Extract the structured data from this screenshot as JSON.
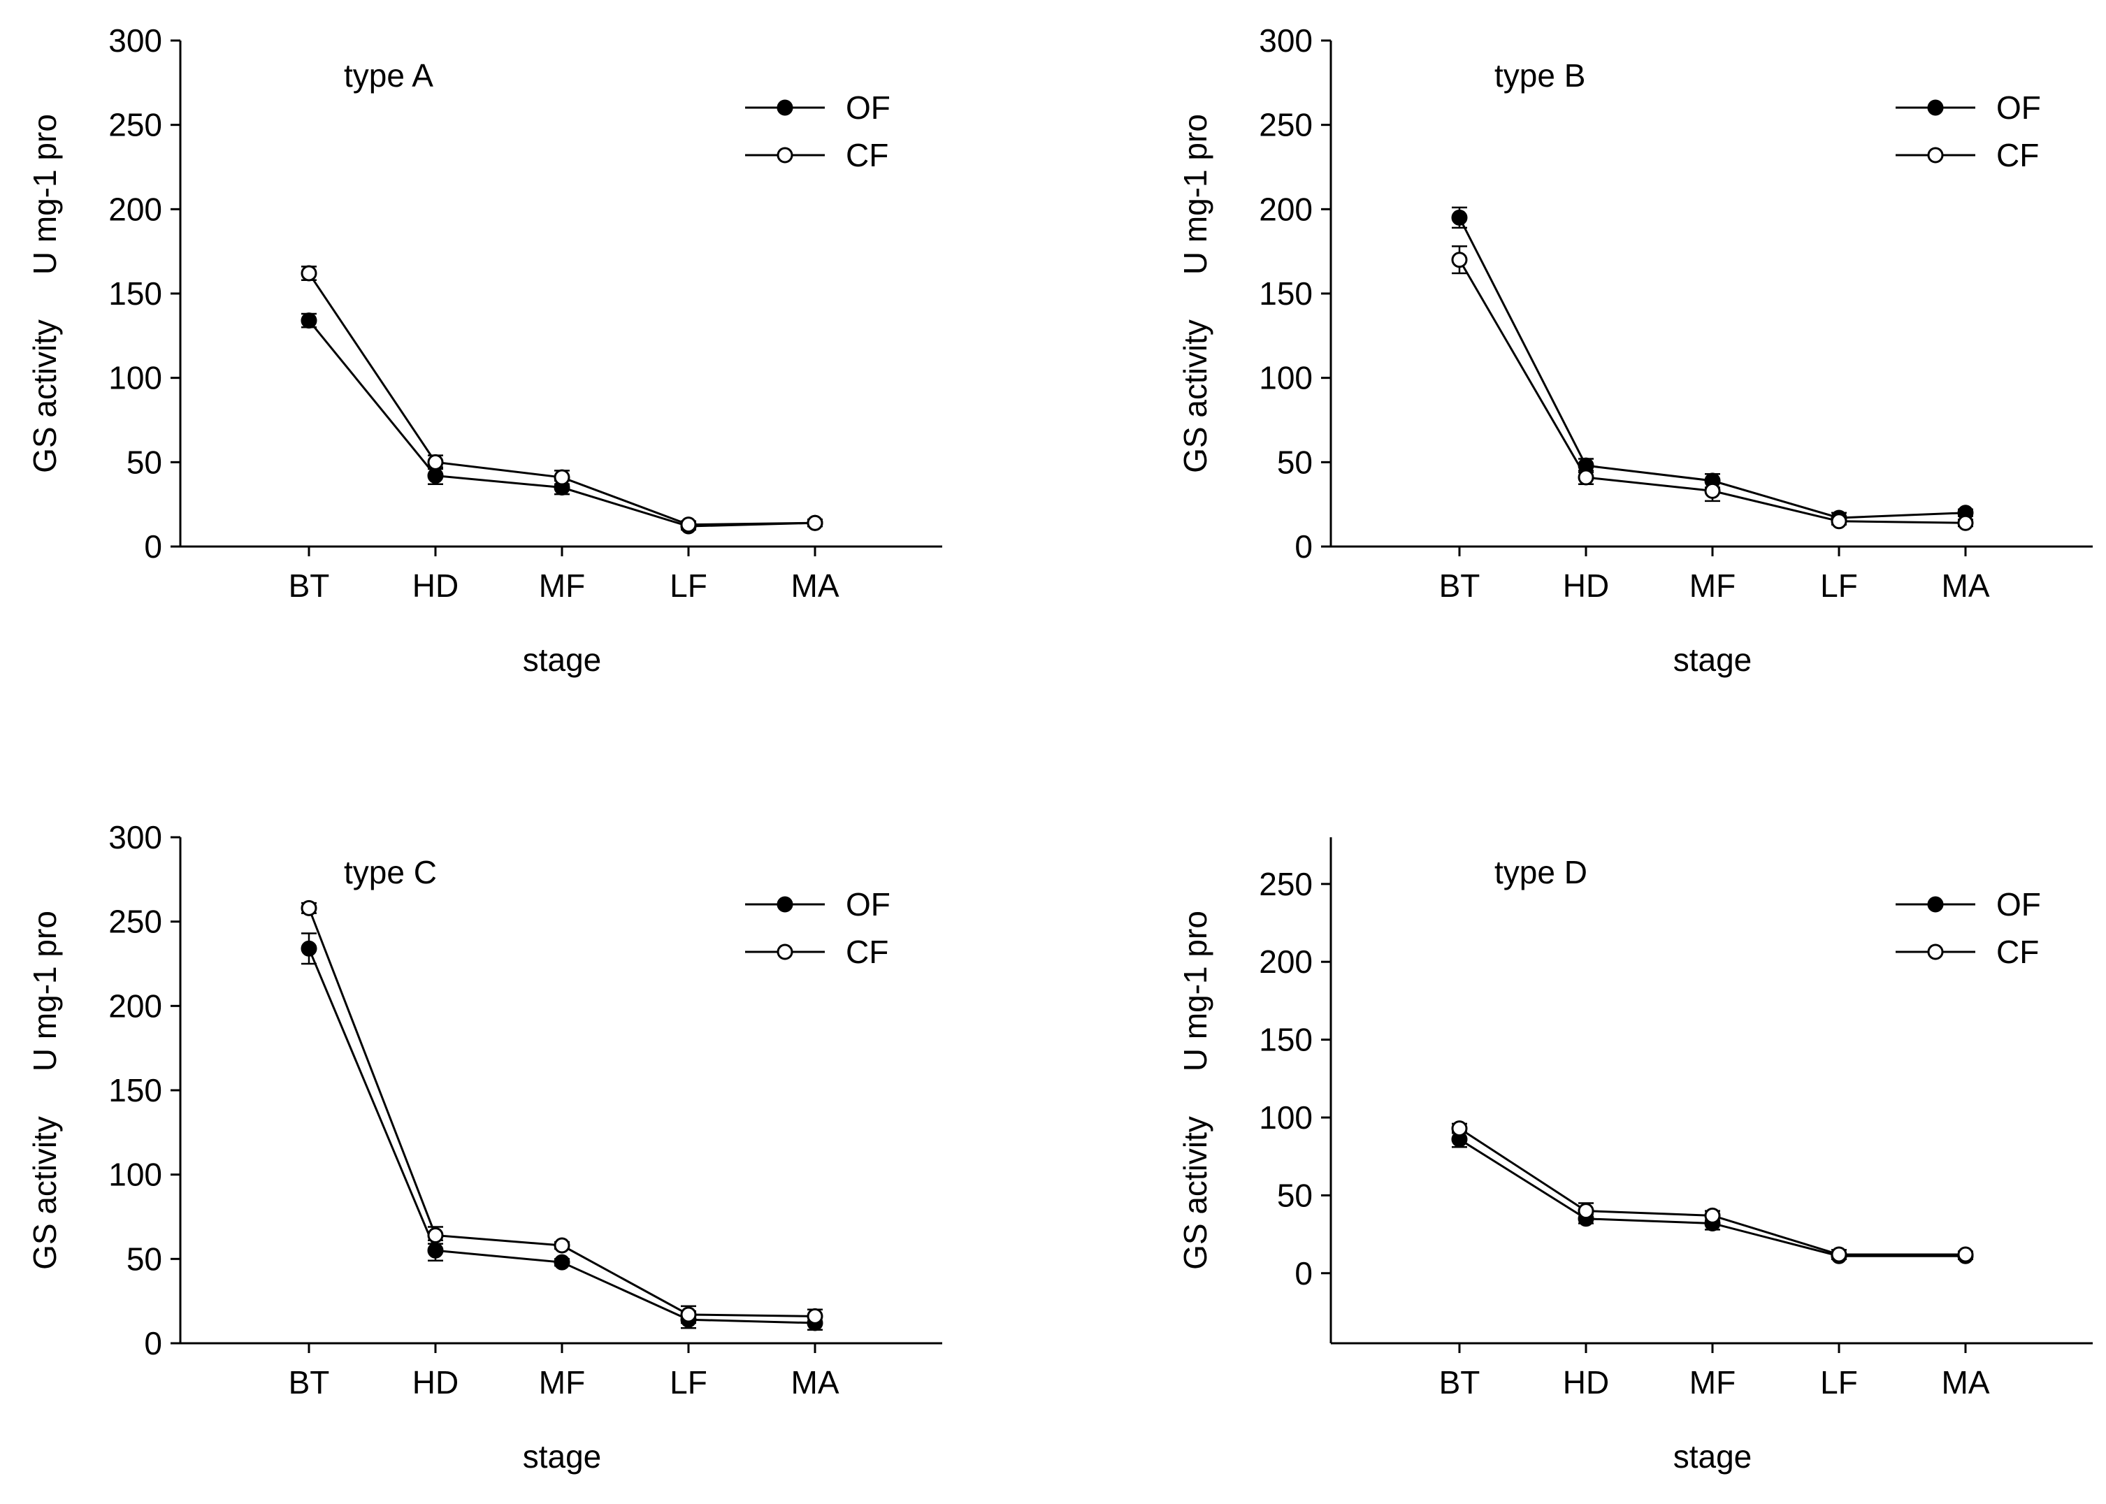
{
  "colors": {
    "OF_marker": "#000000",
    "CF_marker": "#ffffff",
    "line": "#000000"
  },
  "chart_data": [
    {
      "type": "line",
      "title": "type A",
      "xlabel": "stage",
      "ylabel": "GS activity     U mg-1 pro",
      "categories": [
        "BT",
        "HD",
        "MF",
        "LF",
        "MA"
      ],
      "ylim": [
        0,
        300
      ],
      "yticks": [
        0,
        50,
        100,
        150,
        200,
        250,
        300
      ],
      "legend_position": "top-right",
      "series": [
        {
          "name": "OF",
          "marker": "filled-circle",
          "values": [
            134,
            42,
            35,
            12,
            14
          ],
          "errors": [
            4,
            5,
            4,
            2,
            2
          ]
        },
        {
          "name": "CF",
          "marker": "open-circle",
          "values": [
            162,
            50,
            41,
            13,
            14
          ],
          "errors": [
            4,
            4,
            4,
            2,
            2
          ]
        }
      ]
    },
    {
      "type": "line",
      "title": "type B",
      "xlabel": "stage",
      "ylabel": "GS activity     U mg-1 pro",
      "categories": [
        "BT",
        "HD",
        "MF",
        "LF",
        "MA"
      ],
      "ylim": [
        0,
        300
      ],
      "yticks": [
        0,
        50,
        100,
        150,
        200,
        250,
        300
      ],
      "legend_position": "top-right",
      "series": [
        {
          "name": "OF",
          "marker": "filled-circle",
          "values": [
            195,
            48,
            39,
            17,
            20
          ],
          "errors": [
            6,
            4,
            4,
            3,
            2
          ]
        },
        {
          "name": "CF",
          "marker": "open-circle",
          "values": [
            170,
            41,
            33,
            15,
            14
          ],
          "errors": [
            8,
            4,
            6,
            2,
            2
          ]
        }
      ]
    },
    {
      "type": "line",
      "title": "type C",
      "xlabel": "stage",
      "ylabel": "GS activity     U mg-1 pro",
      "categories": [
        "BT",
        "HD",
        "MF",
        "LF",
        "MA"
      ],
      "ylim": [
        0,
        300
      ],
      "yticks": [
        0,
        50,
        100,
        150,
        200,
        250,
        300
      ],
      "legend_position": "top-right",
      "series": [
        {
          "name": "OF",
          "marker": "filled-circle",
          "values": [
            234,
            55,
            48,
            14,
            12
          ],
          "errors": [
            9,
            6,
            2,
            5,
            4
          ]
        },
        {
          "name": "CF",
          "marker": "open-circle",
          "values": [
            258,
            64,
            58,
            17,
            16
          ],
          "errors": [
            3,
            5,
            2,
            5,
            4
          ]
        }
      ]
    },
    {
      "type": "line",
      "title": "type D",
      "xlabel": "stage",
      "ylabel": "GS activity     U mg-1 pro",
      "categories": [
        "BT",
        "HD",
        "MF",
        "LF",
        "MA"
      ],
      "ylim": [
        -45,
        280
      ],
      "yticks": [
        0,
        50,
        100,
        150,
        200,
        250
      ],
      "legend_position": "top-right",
      "series": [
        {
          "name": "OF",
          "marker": "filled-circle",
          "values": [
            86,
            35,
            32,
            11,
            11
          ],
          "errors": [
            5,
            3,
            4,
            2,
            2
          ]
        },
        {
          "name": "CF",
          "marker": "open-circle",
          "values": [
            93,
            40,
            37,
            12,
            12
          ],
          "errors": [
            3,
            5,
            3,
            3,
            2
          ]
        }
      ]
    }
  ]
}
